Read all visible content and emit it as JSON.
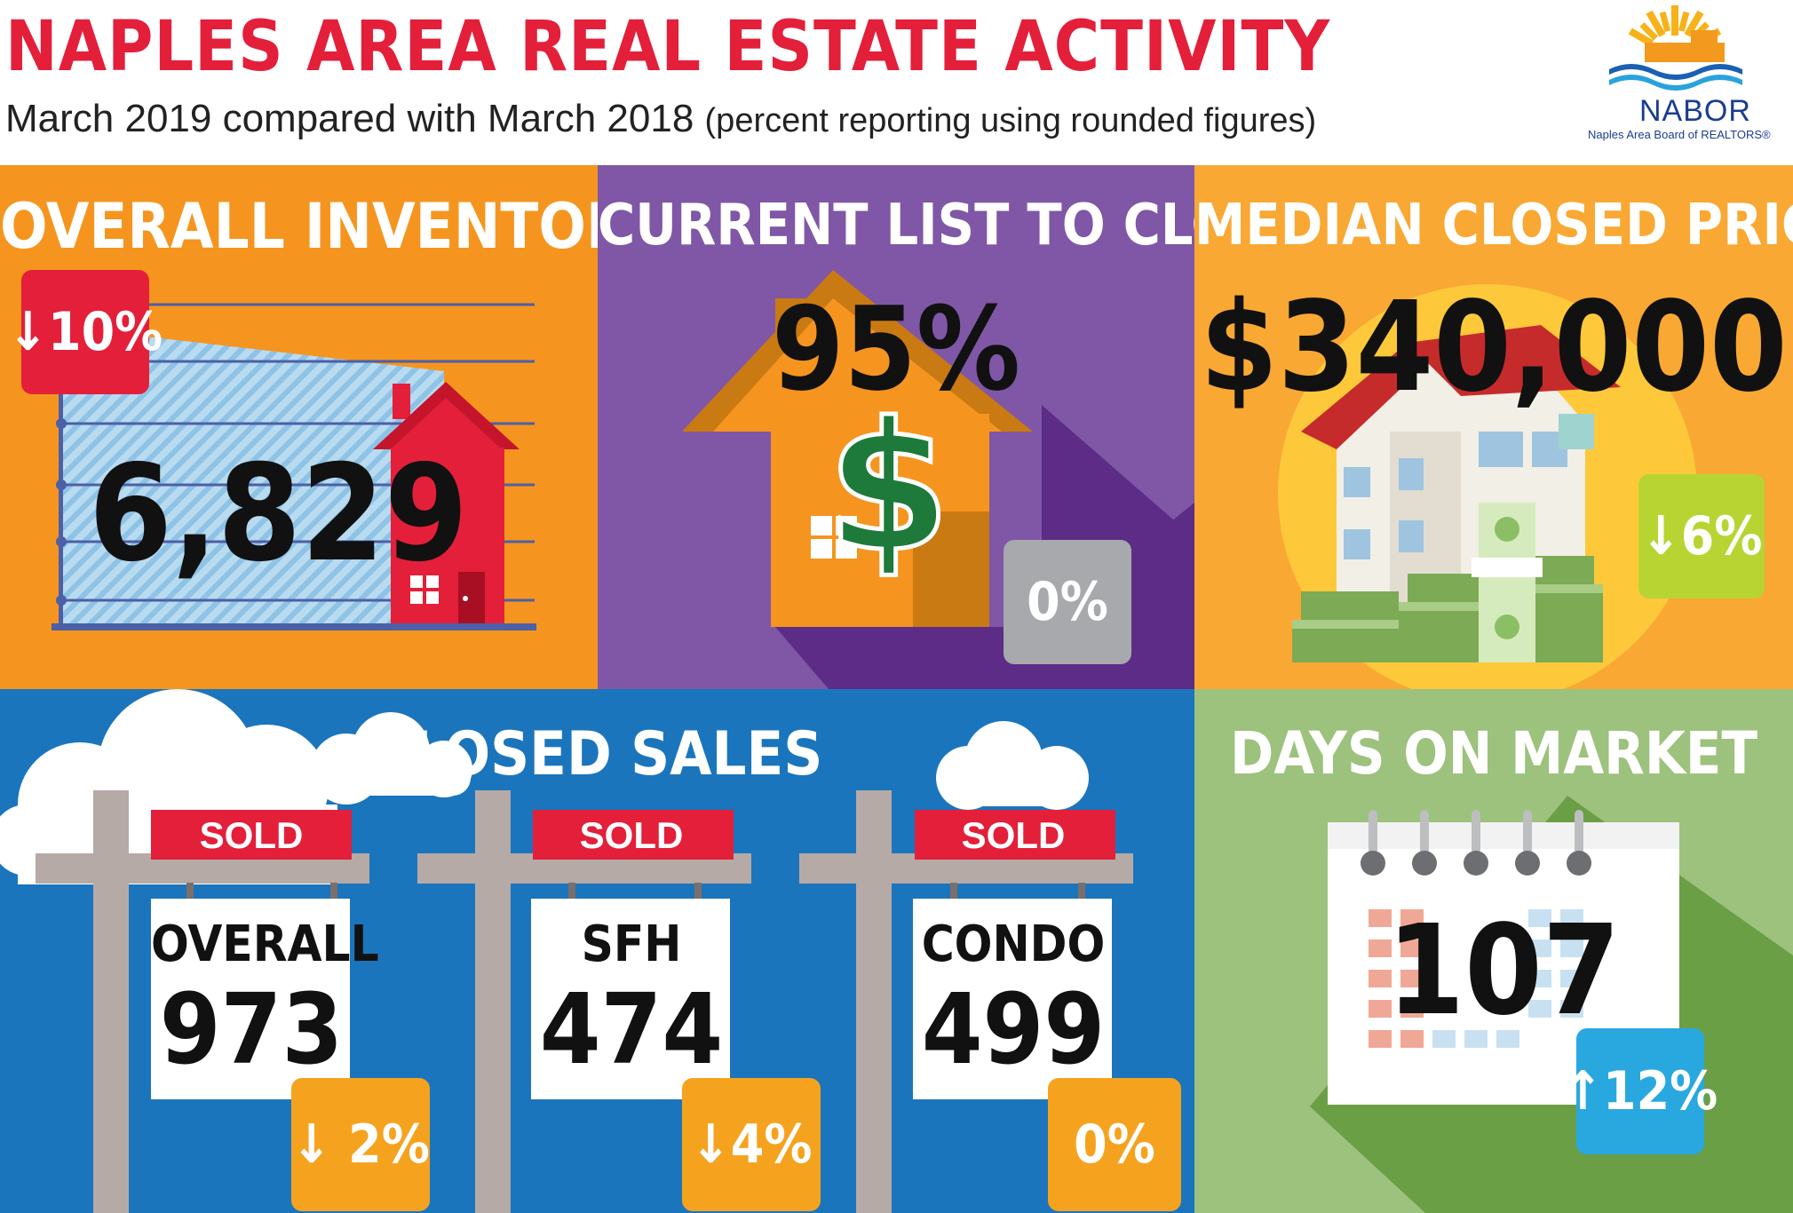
{
  "header": {
    "title": "NAPLES AREA REAL ESTATE ACTIVITY",
    "subtitle": "March 2019 compared with March 2018",
    "subtitle_note": "(percent reporting using rounded figures)",
    "logo_name": "NABOR",
    "logo_tagline": "Naples Area Board of REALTORS®"
  },
  "inventory": {
    "title": "OVERALL INVENTORY",
    "value": "6,829",
    "change": "↓10%",
    "color": "#f5951f"
  },
  "list_to_closed": {
    "title": "CURRENT LIST TO CLOSED",
    "value": "95%",
    "change": "0%",
    "color": "#7f57a6"
  },
  "median_price": {
    "title": "MEDIAN CLOSED PRICE",
    "value": "$340,000",
    "change": "↓6%",
    "color": "#f9a833"
  },
  "closed_sales": {
    "title": "CLOSED SALES",
    "color": "#1b75bc",
    "signs": [
      {
        "sold": "SOLD",
        "label": "OVERALL",
        "value": "973",
        "change": "↓ 2%"
      },
      {
        "sold": "SOLD",
        "label": "SFH",
        "value": "474",
        "change": "↓4%"
      },
      {
        "sold": "SOLD",
        "label": "CONDO",
        "value": "499",
        "change": "0%"
      }
    ]
  },
  "days_on_market": {
    "title": "DAYS ON MARKET",
    "value": "107",
    "change": "↑12%",
    "color": "#9cc27d"
  }
}
